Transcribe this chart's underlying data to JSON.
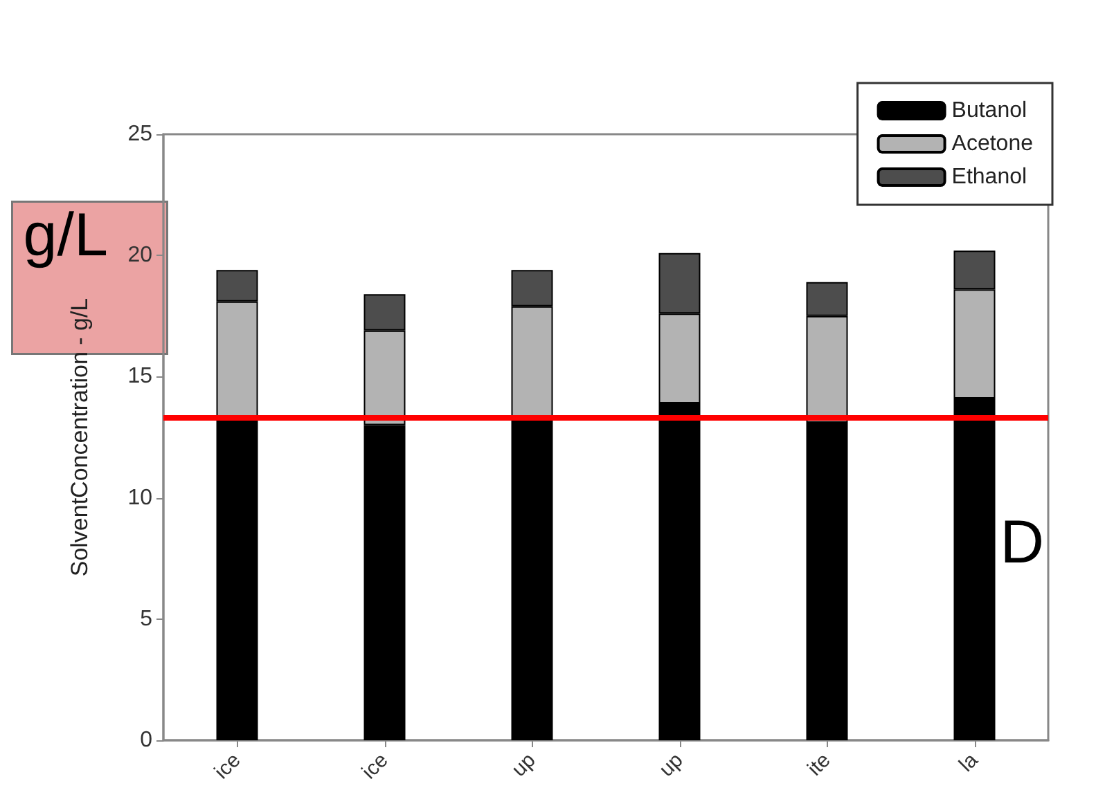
{
  "chart_data": {
    "type": "bar",
    "stacked": true,
    "ylabel": "SolventConcentration - g/L",
    "categories": [
      "ice",
      "ice",
      "up",
      "up",
      "ite",
      "la"
    ],
    "series": [
      {
        "name": "Butanol",
        "color": "#000000",
        "values": [
          13.2,
          13.0,
          13.2,
          13.9,
          13.1,
          14.1
        ]
      },
      {
        "name": "Acetone",
        "color": "#b3b3b3",
        "values": [
          4.9,
          3.9,
          4.7,
          3.7,
          4.4,
          4.5
        ]
      },
      {
        "name": "Ethanol",
        "color": "#4d4d4d",
        "values": [
          1.3,
          1.5,
          1.5,
          2.5,
          1.4,
          1.6
        ]
      }
    ],
    "ylim": [
      0,
      25
    ],
    "yticks": [
      0,
      5,
      10,
      15,
      20,
      25
    ],
    "grid": false,
    "legend": "top right",
    "ref_lines": [
      {
        "axis": "y",
        "value": 13.3,
        "color": "#ff0000",
        "line_style": "solid"
      }
    ],
    "annotations": [
      "g/L",
      "D"
    ]
  }
}
